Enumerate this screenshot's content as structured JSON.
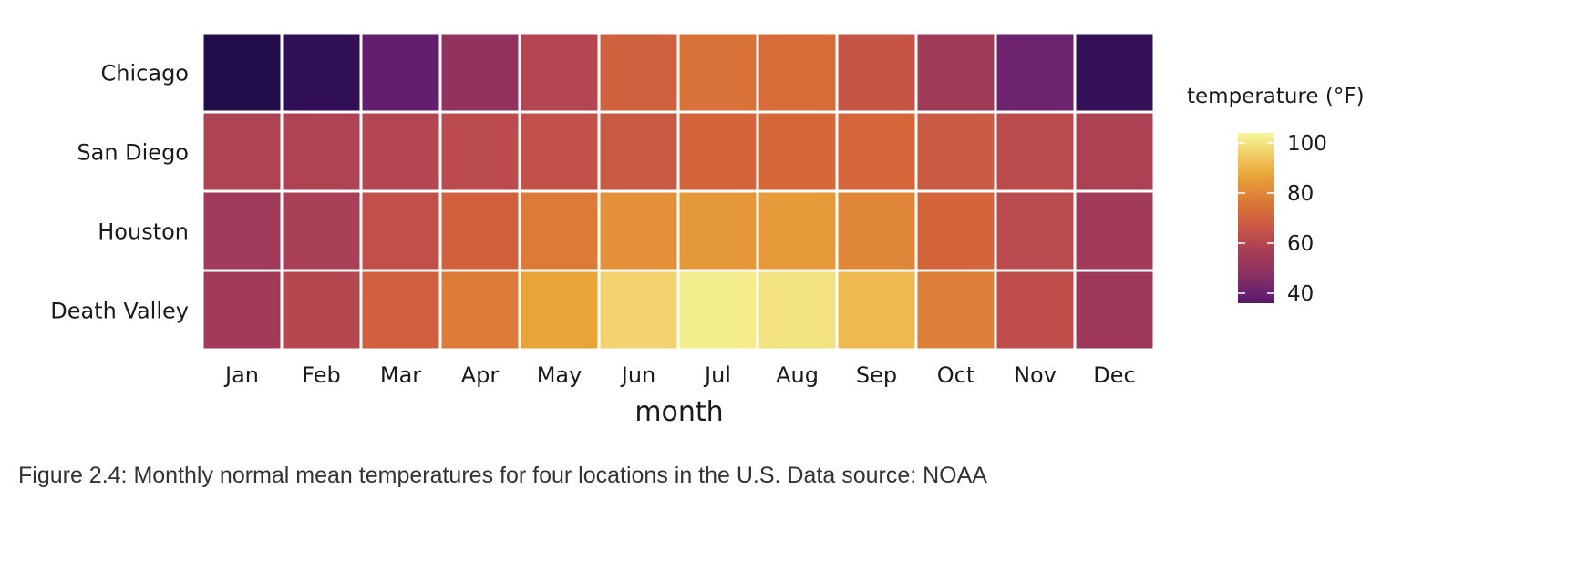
{
  "chart_data": {
    "type": "heatmap",
    "xlabel": "month",
    "ylabel": "",
    "categories": [
      "Jan",
      "Feb",
      "Mar",
      "Apr",
      "May",
      "Jun",
      "Jul",
      "Aug",
      "Sep",
      "Oct",
      "Nov",
      "Dec"
    ],
    "rows": [
      "Chicago",
      "San Diego",
      "Houston",
      "Death Valley"
    ],
    "series": [
      {
        "name": "Chicago",
        "values": [
          24.8,
          28.9,
          38.6,
          49.3,
          59.7,
          69.5,
          74.5,
          73.0,
          65.6,
          53.8,
          40.6,
          29.7
        ]
      },
      {
        "name": "San Diego",
        "values": [
          58.4,
          58.5,
          59.9,
          62.0,
          64.3,
          67.0,
          70.8,
          72.1,
          71.3,
          67.2,
          61.9,
          57.6
        ]
      },
      {
        "name": "Houston",
        "values": [
          53.7,
          57.2,
          63.8,
          69.8,
          76.8,
          82.1,
          84.1,
          84.5,
          79.4,
          71.1,
          61.7,
          54.5
        ]
      },
      {
        "name": "Death Valley",
        "values": [
          54.7,
          60.3,
          69.1,
          77.0,
          87.1,
          96.7,
          102.0,
          99.7,
          91.5,
          77.7,
          63.1,
          52.9
        ]
      }
    ],
    "legend": {
      "title": "temperature (°F)",
      "ticks": [
        40,
        60,
        80,
        100
      ],
      "placement": "right",
      "range": [
        36,
        104
      ]
    },
    "palette": [
      "#1f0c48",
      "#3d1160",
      "#6b2270",
      "#8e3160",
      "#a63d57",
      "#c2504a",
      "#d66838",
      "#e08838",
      "#eaa838",
      "#f2cf6a",
      "#f4f79a"
    ]
  },
  "caption": "Figure 2.4: Monthly normal mean temperatures for four locations in the U.S. Data source: NOAA"
}
